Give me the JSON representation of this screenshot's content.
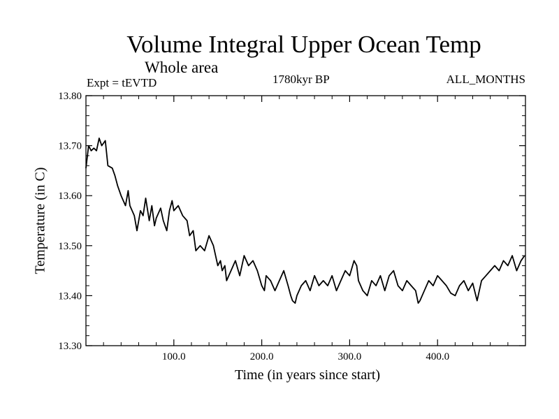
{
  "chart_data": {
    "type": "line",
    "title": "Volume Integral Upper Ocean Temp",
    "subtitle": "Whole area",
    "experiment": "Expt = tEVTD",
    "period": "1780kyr BP",
    "season": "ALL_MONTHS",
    "xlabel": "Time (in years since start)",
    "ylabel": "Temperature (in C)",
    "xlim": [
      0,
      500
    ],
    "ylim": [
      13.3,
      13.8
    ],
    "xticks": [
      100,
      200,
      300,
      400
    ],
    "xtick_labels": [
      "100.0",
      "200.0",
      "300.0",
      "400.0"
    ],
    "yticks": [
      13.3,
      13.4,
      13.5,
      13.6,
      13.7,
      13.8
    ],
    "ytick_labels": [
      "13.30",
      "13.40",
      "13.50",
      "13.60",
      "13.70",
      "13.80"
    ],
    "grid": false,
    "series": [
      {
        "name": "temperature",
        "x": [
          0,
          3,
          6,
          9,
          12,
          15,
          18,
          22,
          25,
          30,
          33,
          36,
          40,
          45,
          48,
          50,
          55,
          58,
          62,
          65,
          68,
          72,
          75,
          78,
          80,
          85,
          88,
          92,
          95,
          98,
          100,
          105,
          110,
          115,
          118,
          122,
          125,
          130,
          135,
          140,
          145,
          150,
          153,
          155,
          158,
          160,
          165,
          170,
          175,
          180,
          185,
          190,
          195,
          200,
          203,
          205,
          210,
          215,
          220,
          225,
          230,
          233,
          235,
          238,
          240,
          245,
          250,
          255,
          260,
          265,
          270,
          275,
          280,
          285,
          290,
          295,
          300,
          305,
          308,
          310,
          315,
          320,
          325,
          330,
          335,
          340,
          345,
          350,
          355,
          360,
          365,
          370,
          375,
          378,
          380,
          385,
          390,
          395,
          400,
          405,
          410,
          415,
          420,
          425,
          430,
          435,
          440,
          445,
          450,
          455,
          460,
          465,
          470,
          475,
          480,
          485,
          490,
          495,
          499
        ],
        "values": [
          13.655,
          13.7,
          13.69,
          13.695,
          13.69,
          13.715,
          13.7,
          13.71,
          13.66,
          13.655,
          13.64,
          13.62,
          13.6,
          13.58,
          13.61,
          13.58,
          13.56,
          13.53,
          13.57,
          13.56,
          13.595,
          13.55,
          13.58,
          13.54,
          13.555,
          13.575,
          13.55,
          13.53,
          13.57,
          13.59,
          13.57,
          13.58,
          13.56,
          13.55,
          13.52,
          13.53,
          13.49,
          13.5,
          13.49,
          13.52,
          13.5,
          13.46,
          13.47,
          13.45,
          13.46,
          13.43,
          13.45,
          13.47,
          13.44,
          13.48,
          13.46,
          13.47,
          13.45,
          13.42,
          13.41,
          13.44,
          13.43,
          13.41,
          13.43,
          13.45,
          13.42,
          13.4,
          13.39,
          13.385,
          13.4,
          13.42,
          13.43,
          13.41,
          13.44,
          13.42,
          13.43,
          13.42,
          13.44,
          13.41,
          13.43,
          13.45,
          13.44,
          13.47,
          13.46,
          13.43,
          13.41,
          13.4,
          13.43,
          13.42,
          13.44,
          13.41,
          13.44,
          13.45,
          13.42,
          13.41,
          13.43,
          13.42,
          13.41,
          13.385,
          13.39,
          13.41,
          13.43,
          13.42,
          13.44,
          13.43,
          13.42,
          13.405,
          13.4,
          13.42,
          13.43,
          13.41,
          13.425,
          13.39,
          13.43,
          13.44,
          13.45,
          13.46,
          13.45,
          13.47,
          13.46,
          13.48,
          13.45,
          13.47,
          13.48
        ]
      }
    ]
  }
}
